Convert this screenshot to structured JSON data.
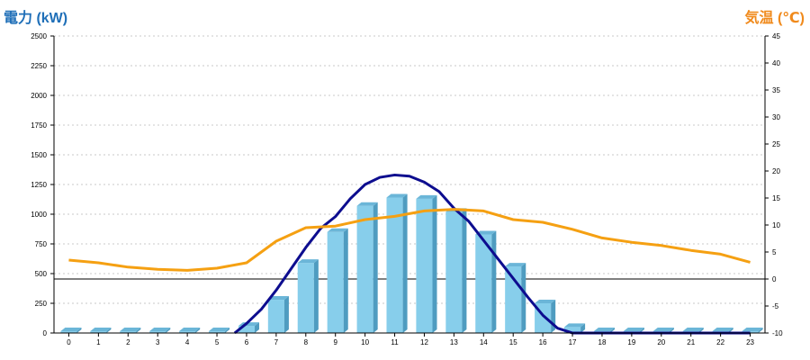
{
  "chart_data": {
    "type": "bar",
    "title": "",
    "xlabel": "",
    "ylabel": "電力 (kW)",
    "y2label": "気温 (℃)",
    "categories": [
      "0",
      "1",
      "2",
      "3",
      "4",
      "5",
      "6",
      "7",
      "8",
      "9",
      "10",
      "11",
      "12",
      "13",
      "14",
      "15",
      "16",
      "17",
      "18",
      "19",
      "20",
      "21",
      "22",
      "23"
    ],
    "ylim": [
      0,
      2500
    ],
    "y_ticks": [
      0,
      250,
      500,
      750,
      1000,
      1250,
      1500,
      1750,
      2000,
      2250,
      2500
    ],
    "y2lim": [
      -10,
      45
    ],
    "y2_ticks": [
      -10,
      -5,
      0,
      5,
      10,
      15,
      20,
      25,
      30,
      35,
      40,
      45
    ],
    "grid": true,
    "series": [
      {
        "type": "bar",
        "axis": "left",
        "color": "#87ceeb",
        "values": [
          15,
          15,
          15,
          15,
          15,
          15,
          60,
          280,
          590,
          850,
          1070,
          1140,
          1130,
          1020,
          830,
          560,
          250,
          50,
          15,
          15,
          15,
          15,
          15,
          15
        ]
      },
      {
        "type": "line",
        "axis": "left",
        "color": "#0d0d8f",
        "x": [
          5.6,
          6,
          6.5,
          7,
          7.5,
          8,
          8.5,
          9,
          9.5,
          10,
          10.5,
          11,
          11.5,
          12,
          12.5,
          13,
          13.5,
          14,
          14.5,
          15,
          15.5,
          16,
          16.5,
          17,
          23
        ],
        "values": [
          0,
          80,
          200,
          360,
          540,
          720,
          880,
          980,
          1130,
          1250,
          1310,
          1330,
          1320,
          1270,
          1190,
          1050,
          940,
          780,
          620,
          460,
          300,
          150,
          40,
          0,
          0
        ]
      },
      {
        "type": "line",
        "axis": "right",
        "color": "#f5a012",
        "values": [
          3.5,
          3,
          2.2,
          1.8,
          1.6,
          2,
          3,
          7,
          9.5,
          9.8,
          11,
          11.6,
          12.6,
          12.9,
          12.6,
          11,
          10.5,
          9.2,
          7.6,
          6.8,
          6.2,
          5.3,
          4.6,
          3.1
        ]
      }
    ]
  }
}
